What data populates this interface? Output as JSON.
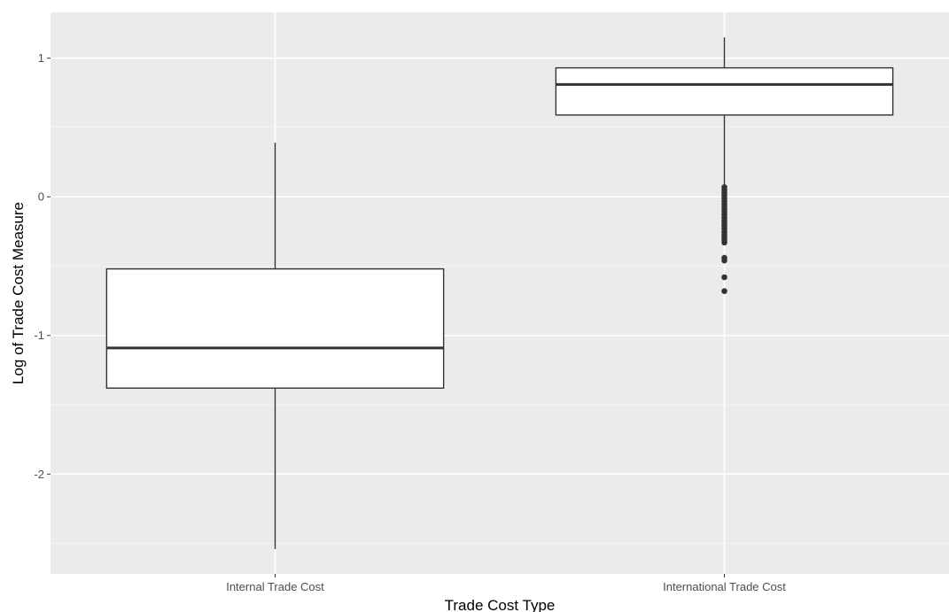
{
  "chart_data": {
    "type": "boxplot",
    "title": "",
    "xlabel": "Trade Cost Type",
    "ylabel": "Log of Trade Cost Measure",
    "ylim": [
      -2.72,
      1.33
    ],
    "y_ticks": [
      -2,
      -1,
      0,
      1
    ],
    "y_minor_ticks": [
      -2.5,
      -1.5,
      -0.5,
      0.5
    ],
    "grid": true,
    "legend": "none",
    "categories": [
      "Internal Trade Cost",
      "International Trade Cost"
    ],
    "boxes": [
      {
        "category": "Internal Trade Cost",
        "whisker_low": -2.54,
        "q1": -1.38,
        "median": -1.09,
        "q3": -0.52,
        "whisker_high": 0.39,
        "outliers": []
      },
      {
        "category": "International Trade Cost",
        "whisker_low": 0.08,
        "q1": 0.59,
        "median": 0.81,
        "q3": 0.93,
        "whisker_high": 1.15,
        "outliers": [
          0.07,
          0.05,
          0.03,
          0.01,
          -0.01,
          -0.03,
          -0.05,
          -0.07,
          -0.09,
          -0.11,
          -0.13,
          -0.15,
          -0.17,
          -0.19,
          -0.21,
          -0.23,
          -0.25,
          -0.27,
          -0.29,
          -0.31,
          -0.33,
          -0.44,
          -0.46,
          -0.58,
          -0.68
        ]
      }
    ],
    "colors": {
      "panel_background": "#ebebeb",
      "grid_major": "#ffffff",
      "grid_minor": "#f5f5f5",
      "box_fill": "#ffffff",
      "box_stroke": "#333333",
      "tick_label": "#4d4d4d",
      "axis_title": "#000000"
    }
  }
}
